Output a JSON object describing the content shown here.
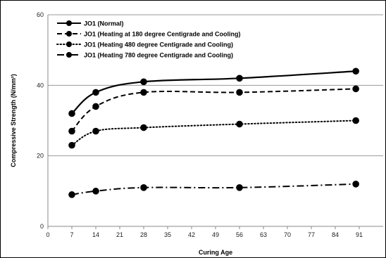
{
  "chart_data": {
    "type": "line",
    "xlabel": "Curing Age",
    "ylabel": "Compressive Strength (N/mm²)",
    "xlim": [
      0,
      98
    ],
    "ylim": [
      0,
      60
    ],
    "x_ticks": [
      "0",
      "7",
      "14",
      "21",
      "28",
      "35",
      "42",
      "49",
      "56",
      "63",
      "70",
      "77",
      "84",
      "91"
    ],
    "y_ticks": [
      "0",
      "20",
      "40",
      "60"
    ],
    "grid": "horizontal",
    "legend_position": "top-left",
    "series": [
      {
        "name": "JO1 (Normal)",
        "style": "solid",
        "x": [
          7,
          14,
          28,
          56,
          90
        ],
        "y": [
          32,
          38,
          41,
          42,
          44
        ]
      },
      {
        "name": "JO1 (Heating at 180 degree Centigrade and Cooling)",
        "style": "dashed",
        "x": [
          7,
          14,
          28,
          56,
          90
        ],
        "y": [
          27,
          34,
          38,
          38,
          39
        ]
      },
      {
        "name": "JO1 (Heating 480 degree Centigrade and Cooling)",
        "style": "dotted",
        "x": [
          7,
          14,
          28,
          56,
          90
        ],
        "y": [
          23,
          27,
          28,
          29,
          30
        ]
      },
      {
        "name": "JO1 (Heating 780 degree Centigrade and Cooling)",
        "style": "dashdot",
        "x": [
          7,
          14,
          28,
          56,
          90
        ],
        "y": [
          9,
          10,
          11,
          11,
          12
        ]
      }
    ],
    "colors": {
      "line": "#000000",
      "grid": "#9a9a9a",
      "axis": "#888888"
    }
  }
}
